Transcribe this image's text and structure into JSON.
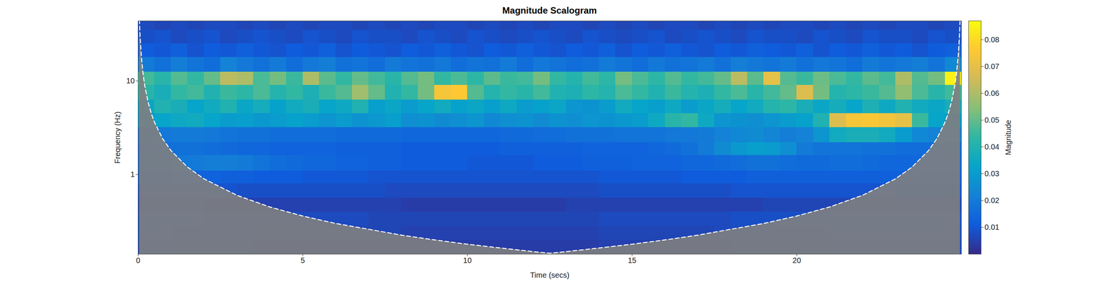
{
  "chart_data": {
    "type": "heatmap",
    "title": "Magnitude Scalogram",
    "x_label": "Time (secs)",
    "y_label": "Frequency (Hz)",
    "xlim": [
      0,
      25
    ],
    "ylim": [
      0.141,
      43.8
    ],
    "xticks": [
      0,
      5,
      10,
      15,
      20
    ],
    "yticks": [
      1,
      10
    ],
    "log": "y",
    "x_bins": [
      0,
      0.5,
      1,
      1.5,
      2,
      2.5,
      3,
      3.5,
      4,
      4.5,
      5,
      5.5,
      6,
      6.5,
      7,
      7.5,
      8,
      8.5,
      9,
      9.5,
      10,
      10.5,
      11,
      11.5,
      12,
      12.5,
      13,
      13.5,
      14,
      14.5,
      15,
      15.5,
      16,
      16.5,
      17,
      17.5,
      18,
      18.5,
      19,
      19.5,
      20,
      20.5,
      21,
      21.5,
      22,
      22.5,
      23,
      23.5,
      24,
      24.5,
      25
    ],
    "y_bins": [
      0.141,
      0.2,
      0.28,
      0.4,
      0.56,
      0.8,
      1.1,
      1.6,
      2.2,
      3.2,
      4.5,
      6.3,
      9,
      12.5,
      18,
      25,
      35,
      43.8
    ],
    "values": [
      [
        0.007,
        0.007,
        0.006,
        0.006,
        0.006,
        0.006,
        0.006,
        0.005,
        0.005,
        0.005,
        0.005,
        0.005,
        0.005,
        0.005,
        0.005,
        0.004,
        0.004,
        0.004,
        0.004,
        0.004,
        0.004,
        0.004,
        0.004,
        0.004,
        0.004,
        0.004,
        0.004,
        0.004,
        0.005,
        0.005,
        0.005,
        0.005,
        0.005,
        0.005,
        0.005,
        0.005,
        0.006,
        0.006,
        0.006,
        0.006,
        0.006,
        0.006,
        0.007,
        0.007,
        0.007,
        0.007,
        0.007,
        0.007,
        0.007,
        0.007
      ],
      [
        0.008,
        0.008,
        0.007,
        0.007,
        0.007,
        0.007,
        0.007,
        0.006,
        0.006,
        0.006,
        0.006,
        0.006,
        0.006,
        0.006,
        0.006,
        0.006,
        0.005,
        0.005,
        0.005,
        0.005,
        0.005,
        0.005,
        0.005,
        0.005,
        0.005,
        0.005,
        0.005,
        0.005,
        0.006,
        0.006,
        0.006,
        0.006,
        0.006,
        0.006,
        0.006,
        0.007,
        0.007,
        0.007,
        0.007,
        0.007,
        0.007,
        0.007,
        0.008,
        0.008,
        0.008,
        0.008,
        0.008,
        0.008,
        0.008,
        0.008
      ],
      [
        0.008,
        0.008,
        0.008,
        0.008,
        0.007,
        0.007,
        0.007,
        0.007,
        0.007,
        0.007,
        0.007,
        0.007,
        0.007,
        0.007,
        0.006,
        0.006,
        0.006,
        0.006,
        0.006,
        0.006,
        0.006,
        0.006,
        0.006,
        0.006,
        0.006,
        0.006,
        0.006,
        0.006,
        0.007,
        0.007,
        0.007,
        0.007,
        0.007,
        0.007,
        0.007,
        0.007,
        0.008,
        0.008,
        0.008,
        0.008,
        0.008,
        0.008,
        0.008,
        0.008,
        0.009,
        0.009,
        0.009,
        0.009,
        0.009,
        0.009
      ],
      [
        0.006,
        0.006,
        0.006,
        0.006,
        0.005,
        0.005,
        0.005,
        0.005,
        0.005,
        0.005,
        0.005,
        0.005,
        0.005,
        0.005,
        0.005,
        0.005,
        0.004,
        0.004,
        0.004,
        0.004,
        0.004,
        0.004,
        0.004,
        0.004,
        0.004,
        0.004,
        0.005,
        0.005,
        0.005,
        0.005,
        0.005,
        0.005,
        0.005,
        0.005,
        0.005,
        0.005,
        0.005,
        0.005,
        0.006,
        0.006,
        0.006,
        0.006,
        0.006,
        0.006,
        0.006,
        0.006,
        0.007,
        0.007,
        0.007,
        0.007
      ],
      [
        0.009,
        0.009,
        0.009,
        0.009,
        0.009,
        0.009,
        0.008,
        0.008,
        0.008,
        0.008,
        0.008,
        0.008,
        0.008,
        0.008,
        0.008,
        0.007,
        0.007,
        0.007,
        0.007,
        0.007,
        0.007,
        0.007,
        0.007,
        0.007,
        0.007,
        0.007,
        0.007,
        0.007,
        0.008,
        0.008,
        0.008,
        0.008,
        0.008,
        0.008,
        0.008,
        0.008,
        0.009,
        0.009,
        0.009,
        0.009,
        0.009,
        0.009,
        0.009,
        0.009,
        0.009,
        0.009,
        0.01,
        0.01,
        0.01,
        0.01
      ],
      [
        0.012,
        0.012,
        0.013,
        0.013,
        0.013,
        0.012,
        0.012,
        0.011,
        0.011,
        0.011,
        0.01,
        0.01,
        0.01,
        0.01,
        0.009,
        0.009,
        0.009,
        0.009,
        0.009,
        0.009,
        0.009,
        0.009,
        0.009,
        0.009,
        0.009,
        0.009,
        0.009,
        0.009,
        0.01,
        0.01,
        0.01,
        0.01,
        0.01,
        0.011,
        0.011,
        0.011,
        0.011,
        0.012,
        0.012,
        0.012,
        0.012,
        0.012,
        0.012,
        0.012,
        0.012,
        0.012,
        0.012,
        0.012,
        0.012,
        0.012
      ],
      [
        0.016,
        0.017,
        0.019,
        0.02,
        0.021,
        0.021,
        0.02,
        0.018,
        0.016,
        0.015,
        0.014,
        0.014,
        0.013,
        0.013,
        0.012,
        0.012,
        0.011,
        0.011,
        0.011,
        0.011,
        0.01,
        0.01,
        0.01,
        0.01,
        0.011,
        0.011,
        0.011,
        0.012,
        0.012,
        0.012,
        0.013,
        0.013,
        0.013,
        0.014,
        0.014,
        0.015,
        0.016,
        0.017,
        0.017,
        0.016,
        0.015,
        0.015,
        0.016,
        0.016,
        0.015,
        0.014,
        0.014,
        0.014,
        0.014,
        0.014
      ],
      [
        0.015,
        0.016,
        0.017,
        0.017,
        0.016,
        0.015,
        0.014,
        0.014,
        0.013,
        0.013,
        0.013,
        0.013,
        0.012,
        0.012,
        0.012,
        0.012,
        0.011,
        0.011,
        0.011,
        0.011,
        0.011,
        0.011,
        0.012,
        0.012,
        0.012,
        0.012,
        0.012,
        0.013,
        0.013,
        0.013,
        0.013,
        0.014,
        0.015,
        0.017,
        0.02,
        0.025,
        0.029,
        0.031,
        0.03,
        0.026,
        0.02,
        0.018,
        0.018,
        0.018,
        0.017,
        0.017,
        0.016,
        0.016,
        0.016,
        0.016
      ],
      [
        0.018,
        0.019,
        0.02,
        0.02,
        0.019,
        0.018,
        0.017,
        0.017,
        0.016,
        0.016,
        0.016,
        0.016,
        0.015,
        0.015,
        0.015,
        0.015,
        0.014,
        0.014,
        0.014,
        0.014,
        0.014,
        0.014,
        0.015,
        0.015,
        0.016,
        0.016,
        0.017,
        0.017,
        0.017,
        0.018,
        0.018,
        0.018,
        0.019,
        0.019,
        0.02,
        0.022,
        0.024,
        0.025,
        0.023,
        0.021,
        0.022,
        0.028,
        0.036,
        0.038,
        0.038,
        0.036,
        0.03,
        0.024,
        0.022,
        0.022
      ],
      [
        0.03,
        0.033,
        0.035,
        0.036,
        0.033,
        0.03,
        0.031,
        0.029,
        0.03,
        0.032,
        0.03,
        0.028,
        0.03,
        0.027,
        0.029,
        0.031,
        0.026,
        0.027,
        0.025,
        0.026,
        0.028,
        0.024,
        0.026,
        0.027,
        0.025,
        0.027,
        0.026,
        0.028,
        0.027,
        0.029,
        0.03,
        0.035,
        0.042,
        0.044,
        0.035,
        0.028,
        0.027,
        0.026,
        0.028,
        0.03,
        0.032,
        0.04,
        0.068,
        0.074,
        0.075,
        0.073,
        0.07,
        0.045,
        0.033,
        0.03
      ],
      [
        0.034,
        0.04,
        0.038,
        0.033,
        0.036,
        0.04,
        0.034,
        0.037,
        0.032,
        0.036,
        0.038,
        0.033,
        0.035,
        0.04,
        0.031,
        0.034,
        0.03,
        0.033,
        0.036,
        0.032,
        0.034,
        0.031,
        0.035,
        0.03,
        0.032,
        0.034,
        0.028,
        0.027,
        0.03,
        0.036,
        0.033,
        0.031,
        0.035,
        0.03,
        0.034,
        0.037,
        0.033,
        0.036,
        0.041,
        0.043,
        0.038,
        0.034,
        0.037,
        0.033,
        0.039,
        0.035,
        0.04,
        0.036,
        0.034,
        0.038
      ],
      [
        0.042,
        0.038,
        0.044,
        0.046,
        0.04,
        0.045,
        0.043,
        0.047,
        0.041,
        0.044,
        0.039,
        0.045,
        0.048,
        0.058,
        0.05,
        0.04,
        0.044,
        0.052,
        0.074,
        0.076,
        0.048,
        0.041,
        0.044,
        0.042,
        0.046,
        0.04,
        0.039,
        0.043,
        0.041,
        0.047,
        0.044,
        0.04,
        0.045,
        0.041,
        0.039,
        0.044,
        0.047,
        0.042,
        0.046,
        0.05,
        0.068,
        0.052,
        0.041,
        0.043,
        0.045,
        0.048,
        0.056,
        0.047,
        0.042,
        0.046
      ],
      [
        0.046,
        0.042,
        0.048,
        0.044,
        0.05,
        0.062,
        0.06,
        0.047,
        0.052,
        0.045,
        0.06,
        0.049,
        0.044,
        0.05,
        0.046,
        0.042,
        0.048,
        0.052,
        0.044,
        0.047,
        0.043,
        0.049,
        0.045,
        0.046,
        0.052,
        0.044,
        0.041,
        0.046,
        0.043,
        0.052,
        0.047,
        0.043,
        0.048,
        0.044,
        0.046,
        0.05,
        0.062,
        0.049,
        0.07,
        0.048,
        0.045,
        0.051,
        0.047,
        0.044,
        0.049,
        0.046,
        0.06,
        0.048,
        0.052,
        0.085
      ],
      [
        0.02,
        0.017,
        0.021,
        0.018,
        0.016,
        0.022,
        0.019,
        0.017,
        0.02,
        0.016,
        0.019,
        0.021,
        0.017,
        0.018,
        0.016,
        0.02,
        0.018,
        0.017,
        0.019,
        0.016,
        0.018,
        0.017,
        0.02,
        0.016,
        0.019,
        0.018,
        0.016,
        0.017,
        0.02,
        0.018,
        0.016,
        0.019,
        0.017,
        0.018,
        0.02,
        0.017,
        0.021,
        0.019,
        0.018,
        0.02,
        0.017,
        0.019,
        0.018,
        0.016,
        0.02,
        0.018,
        0.019,
        0.021,
        0.018,
        0.024
      ],
      [
        0.011,
        0.01,
        0.012,
        0.009,
        0.011,
        0.01,
        0.012,
        0.01,
        0.009,
        0.011,
        0.01,
        0.012,
        0.009,
        0.011,
        0.01,
        0.009,
        0.011,
        0.01,
        0.012,
        0.01,
        0.009,
        0.011,
        0.01,
        0.012,
        0.01,
        0.009,
        0.011,
        0.01,
        0.012,
        0.009,
        0.011,
        0.01,
        0.012,
        0.01,
        0.009,
        0.011,
        0.01,
        0.012,
        0.011,
        0.01,
        0.012,
        0.009,
        0.011,
        0.01,
        0.012,
        0.01,
        0.011,
        0.009,
        0.011,
        0.012
      ],
      [
        0.008,
        0.009,
        0.007,
        0.008,
        0.009,
        0.007,
        0.008,
        0.009,
        0.008,
        0.007,
        0.009,
        0.008,
        0.007,
        0.009,
        0.008,
        0.008,
        0.007,
        0.009,
        0.008,
        0.007,
        0.009,
        0.008,
        0.007,
        0.008,
        0.009,
        0.008,
        0.007,
        0.009,
        0.008,
        0.007,
        0.008,
        0.009,
        0.007,
        0.008,
        0.009,
        0.008,
        0.007,
        0.009,
        0.008,
        0.008,
        0.007,
        0.009,
        0.008,
        0.007,
        0.009,
        0.008,
        0.008,
        0.007,
        0.009,
        0.008
      ],
      [
        0.007,
        0.006,
        0.007,
        0.006,
        0.007,
        0.007,
        0.006,
        0.007,
        0.006,
        0.007,
        0.006,
        0.007,
        0.007,
        0.006,
        0.007,
        0.006,
        0.007,
        0.006,
        0.007,
        0.007,
        0.006,
        0.007,
        0.006,
        0.007,
        0.006,
        0.007,
        0.007,
        0.006,
        0.007,
        0.006,
        0.007,
        0.006,
        0.007,
        0.007,
        0.006,
        0.007,
        0.006,
        0.007,
        0.006,
        0.007,
        0.007,
        0.006,
        0.007,
        0.006,
        0.007,
        0.006,
        0.007,
        0.007,
        0.006,
        0.007
      ]
    ],
    "colorbar": {
      "label": "Magnitude",
      "range": [
        0,
        0.087
      ],
      "ticks": [
        0.01,
        0.02,
        0.03,
        0.04,
        0.05,
        0.06,
        0.07,
        0.08
      ]
    },
    "cone_of_influence": {
      "x": [
        0.04,
        0.06,
        0.1,
        0.15,
        0.2,
        0.3,
        0.4,
        0.5,
        0.75,
        1,
        1.5,
        2,
        3,
        4,
        5,
        6,
        7,
        8,
        9,
        10,
        11,
        12,
        12.5,
        13,
        14,
        15,
        16,
        17,
        18,
        19,
        20,
        21,
        22,
        23,
        23.5,
        24,
        24.25,
        24.5,
        24.6,
        24.7,
        24.8,
        24.85,
        24.9,
        24.94,
        24.96
      ],
      "values": [
        45,
        30,
        18,
        12,
        9,
        6,
        4.5,
        3.6,
        2.4,
        1.8,
        1.2,
        0.9,
        0.6,
        0.45,
        0.36,
        0.3,
        0.26,
        0.225,
        0.2,
        0.18,
        0.164,
        0.15,
        0.144,
        0.15,
        0.164,
        0.18,
        0.2,
        0.225,
        0.26,
        0.3,
        0.36,
        0.45,
        0.6,
        0.9,
        1.2,
        1.8,
        2.4,
        3.6,
        4.5,
        6,
        9,
        12,
        18,
        30,
        45
      ],
      "color": "white",
      "line_style": "dashed"
    }
  }
}
